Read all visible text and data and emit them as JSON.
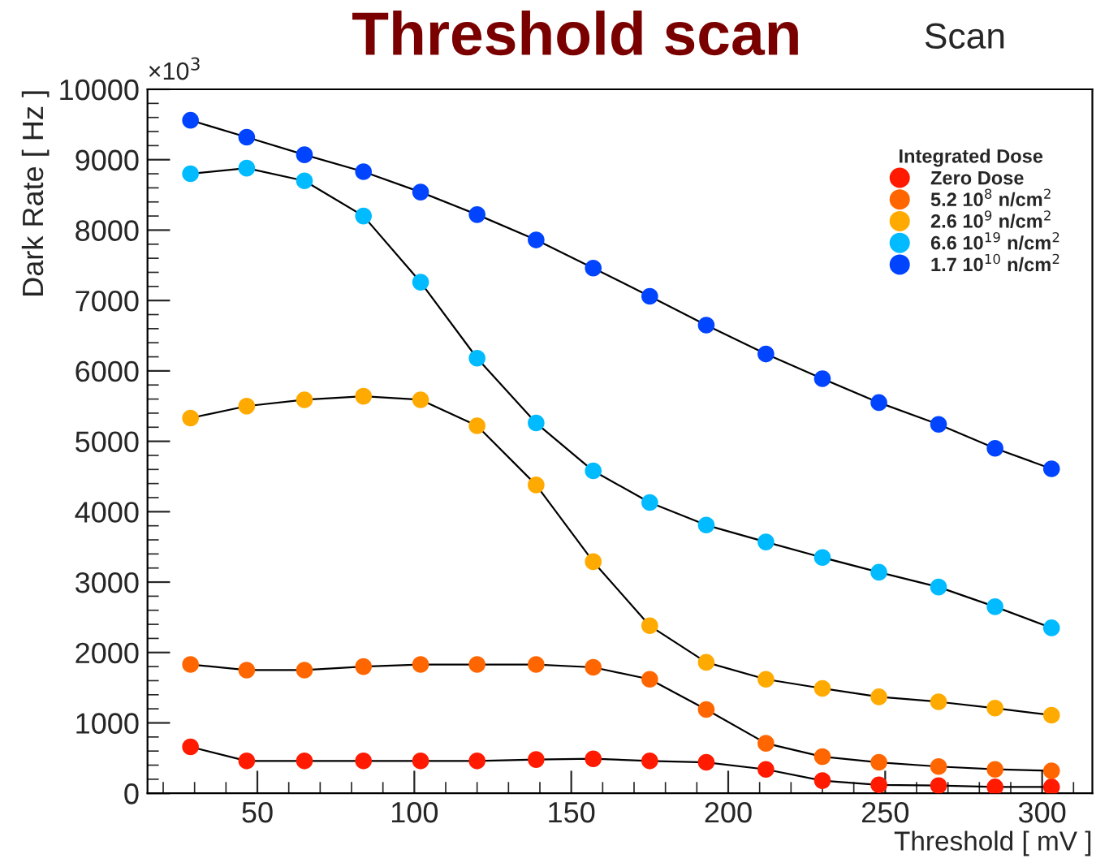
{
  "chart_data": {
    "type": "line",
    "title": "Threshold scan",
    "xlabel": "Threshold [ mV ]",
    "ylabel": "Dark Rate [ Hz ]",
    "legend_title": "Integrated Dose",
    "annotations": [
      "×10$^{3}$",
      "Scan"
    ],
    "x": [
      28.7,
      46.6,
      65,
      83.8,
      102,
      120,
      138.8,
      157,
      175,
      193,
      212,
      230,
      248,
      267,
      285,
      303
    ],
    "series": [
      {
        "name": "Zero Dose",
        "color": "#ff1a00",
        "values": [
          660,
          460,
          460,
          460,
          460,
          460,
          480,
          490,
          460,
          440,
          340,
          180,
          120,
          110,
          90,
          90
        ]
      },
      {
        "name": "5.2 10$^{8}$ n/cm$^{2}$",
        "color": "#ff6600",
        "values": [
          1830,
          1750,
          1750,
          1800,
          1830,
          1830,
          1830,
          1790,
          1620,
          1190,
          710,
          520,
          440,
          380,
          340,
          320
        ]
      },
      {
        "name": "2.6 10$^{9}$ n/cm$^{2}$",
        "color": "#ffaa00",
        "values": [
          5330,
          5500,
          5590,
          5640,
          5590,
          5220,
          4380,
          3290,
          2380,
          1860,
          1620,
          1490,
          1370,
          1300,
          1210,
          1110
        ]
      },
      {
        "name": "6.6 10$^{19}$ n/cm$^{2}$",
        "color": "#00bbff",
        "values": [
          8800,
          8880,
          8700,
          8200,
          7260,
          6180,
          5260,
          4580,
          4130,
          3810,
          3570,
          3350,
          3140,
          2930,
          2650,
          2350
        ]
      },
      {
        "name": "1.7 10$^{10}$ n/cm$^{2}$",
        "color": "#0044ff",
        "values": [
          9560,
          9320,
          9070,
          8830,
          8540,
          8220,
          7860,
          7460,
          7060,
          6650,
          6240,
          5890,
          5550,
          5240,
          4900,
          4610
        ]
      }
    ],
    "xlim": [
      15,
      316
    ],
    "xticks": [
      50,
      100,
      150,
      200,
      250,
      300
    ],
    "ylim": [
      0,
      10000
    ],
    "yticks": [
      0,
      1000,
      2000,
      3000,
      4000,
      5000,
      6000,
      7000,
      8000,
      9000,
      10000
    ],
    "grid": false,
    "legend": "top right",
    "marker": "circle",
    "line_style": "solid"
  }
}
